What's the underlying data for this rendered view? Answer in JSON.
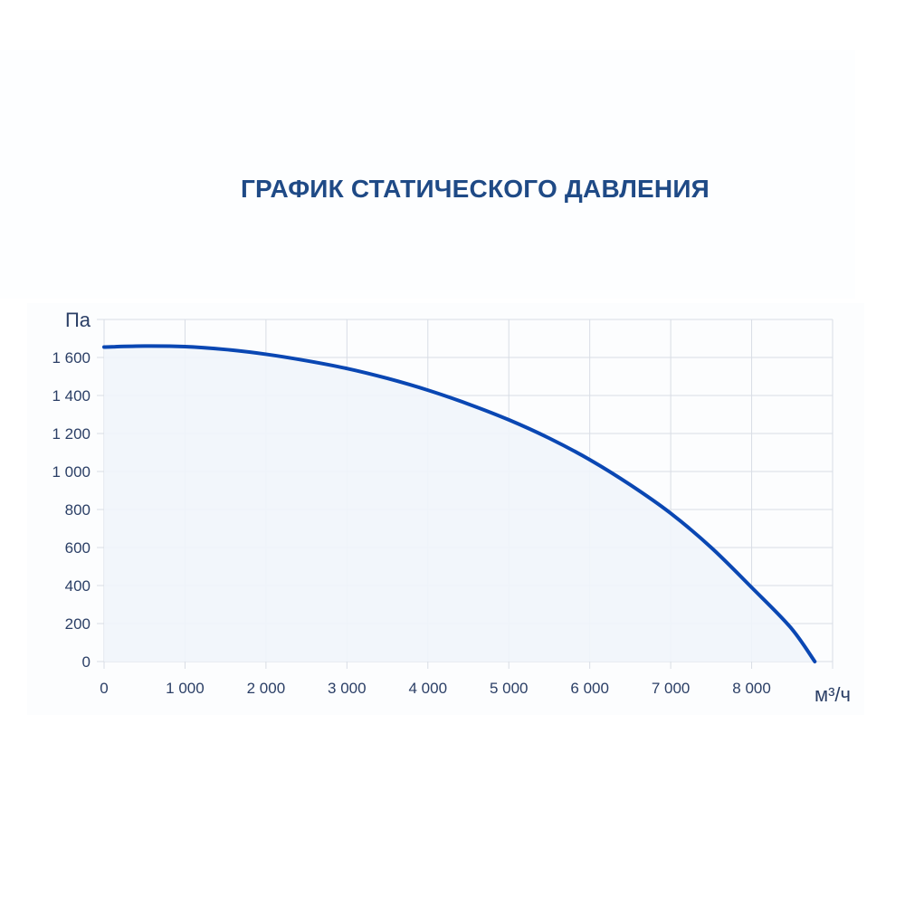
{
  "chart_data": {
    "type": "area",
    "title": "ГРАФИК СТАТИЧЕСКОГО ДАВЛЕНИЯ",
    "xlabel": "м³/ч",
    "ylabel": "Па",
    "xlim": [
      0,
      9000
    ],
    "ylim": [
      0,
      1800
    ],
    "grid": true,
    "x_ticks": [
      0,
      1000,
      2000,
      3000,
      4000,
      5000,
      6000,
      7000,
      8000
    ],
    "x_tick_labels": [
      "0",
      "1 000",
      "2 000",
      "3 000",
      "4 000",
      "5 000",
      "6 000",
      "7 000",
      "8 000"
    ],
    "y_ticks": [
      0,
      200,
      400,
      600,
      800,
      1000,
      1200,
      1400,
      1600
    ],
    "y_tick_labels": [
      "0",
      "200",
      "400",
      "600",
      "800",
      "1 000",
      "1 200",
      "1 400",
      "1 600"
    ],
    "series": [
      {
        "x": [
          0,
          500,
          1000,
          1500,
          2000,
          2500,
          3000,
          3500,
          4000,
          4500,
          5000,
          5500,
          6000,
          6500,
          7000,
          7500,
          8000,
          8480,
          8780
        ],
        "y": [
          1655,
          1660,
          1657,
          1642,
          1617,
          1583,
          1542,
          1490,
          1428,
          1355,
          1272,
          1175,
          1062,
          930,
          780,
          600,
          390,
          180,
          0
        ]
      }
    ],
    "colors": {
      "line": "#0a47b3",
      "fill": "#f1f5fb",
      "grid": "#d8dde5",
      "title": "#1f4a86"
    }
  }
}
